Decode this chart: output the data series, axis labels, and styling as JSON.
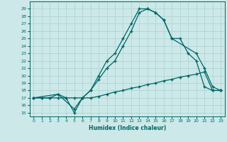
{
  "xlabel": "Humidex (Indice chaleur)",
  "bg_color": "#cce8e8",
  "grid_color": "#b0d4d4",
  "line_color": "#006666",
  "xlim": [
    -0.5,
    23.5
  ],
  "ylim": [
    14.5,
    30.0
  ],
  "xticks": [
    0,
    1,
    2,
    3,
    4,
    5,
    6,
    7,
    8,
    9,
    10,
    11,
    12,
    13,
    14,
    15,
    16,
    17,
    18,
    19,
    20,
    21,
    22,
    23
  ],
  "yticks": [
    15,
    16,
    17,
    18,
    19,
    20,
    21,
    22,
    23,
    24,
    25,
    26,
    27,
    28,
    29
  ],
  "line1_x": [
    0,
    1,
    2,
    3,
    4,
    5,
    6,
    7,
    8,
    9,
    10,
    11,
    12,
    13,
    14,
    15,
    16,
    17,
    18,
    19,
    20,
    21,
    22,
    23
  ],
  "line1_y": [
    17,
    17,
    17,
    17.5,
    17,
    15,
    17,
    18,
    20,
    22,
    23,
    25,
    27,
    29,
    29,
    28.5,
    27.5,
    25,
    25,
    23,
    22,
    18.5,
    18,
    18
  ],
  "line2_x": [
    0,
    3,
    5,
    6,
    7,
    8,
    9,
    10,
    11,
    12,
    13,
    14,
    15,
    16,
    17,
    20,
    21,
    22,
    23
  ],
  "line2_y": [
    17,
    17.5,
    15.5,
    17,
    18,
    19.5,
    21,
    22,
    24,
    26,
    28.5,
    29,
    28.5,
    27.5,
    25,
    23,
    21,
    18.5,
    18
  ],
  "line3_x": [
    0,
    1,
    2,
    3,
    4,
    5,
    6,
    7,
    8,
    9,
    10,
    11,
    12,
    13,
    14,
    15,
    16,
    17,
    18,
    19,
    20,
    21,
    22,
    23
  ],
  "line3_y": [
    17,
    17,
    17,
    17,
    17,
    17,
    17,
    17,
    17.2,
    17.5,
    17.8,
    18.0,
    18.3,
    18.5,
    18.8,
    19.0,
    19.3,
    19.5,
    19.8,
    20.0,
    20.2,
    20.5,
    18,
    18
  ]
}
